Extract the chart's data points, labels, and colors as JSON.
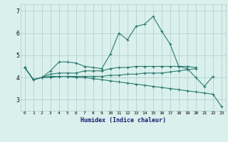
{
  "title": "",
  "xlabel": "Humidex (Indice chaleur)",
  "x_values": [
    0,
    1,
    2,
    3,
    4,
    5,
    6,
    7,
    8,
    9,
    10,
    11,
    12,
    13,
    14,
    15,
    16,
    17,
    18,
    19,
    20,
    21,
    22,
    23
  ],
  "lines": [
    [
      4.45,
      3.9,
      4.0,
      4.3,
      4.7,
      4.7,
      4.65,
      4.5,
      4.45,
      4.4,
      5.05,
      6.0,
      5.7,
      6.3,
      6.4,
      6.75,
      6.1,
      5.5,
      4.5,
      4.4,
      4.0,
      3.6,
      4.05,
      null
    ],
    [
      4.45,
      3.9,
      4.0,
      4.15,
      4.2,
      4.2,
      4.2,
      4.3,
      4.3,
      4.3,
      4.4,
      4.45,
      4.45,
      4.5,
      4.5,
      4.5,
      4.5,
      4.5,
      4.5,
      4.5,
      4.45,
      null,
      null,
      null
    ],
    [
      4.45,
      3.9,
      4.0,
      4.05,
      4.05,
      4.05,
      4.0,
      4.0,
      3.95,
      3.9,
      3.85,
      3.8,
      3.75,
      3.7,
      3.65,
      3.6,
      3.55,
      3.5,
      3.45,
      3.4,
      3.35,
      3.3,
      3.25,
      2.7
    ],
    [
      4.45,
      3.9,
      4.0,
      4.0,
      4.05,
      4.05,
      4.05,
      4.05,
      4.05,
      4.05,
      4.1,
      4.1,
      4.15,
      4.15,
      4.2,
      4.2,
      4.2,
      4.25,
      4.3,
      4.35,
      4.4,
      null,
      null,
      null
    ]
  ],
  "line_color": "#2a7a6e",
  "bg_color": "#daf0ed",
  "grid_color": "#a8cdc8",
  "ylim": [
    2.5,
    7.3
  ],
  "yticks": [
    3,
    4,
    5,
    6,
    7
  ],
  "xlabel_color": "#1a1a6e",
  "figsize": [
    3.2,
    2.0
  ],
  "dpi": 100
}
